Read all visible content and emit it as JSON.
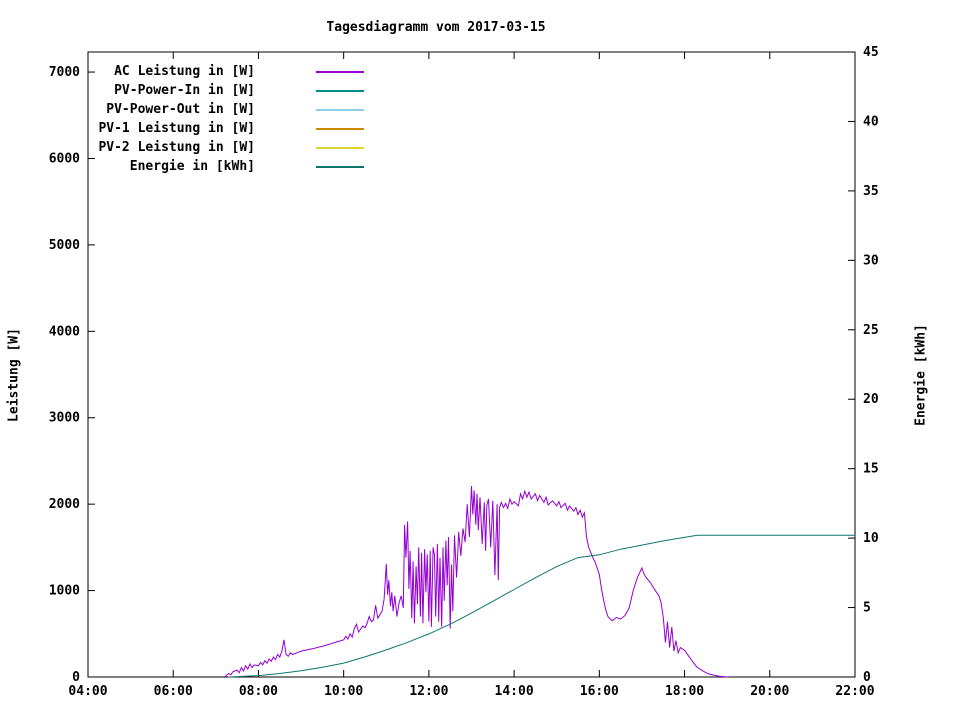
{
  "chart_data": {
    "type": "line",
    "title": "Tagesdiagramm vom 2017-03-15",
    "grid": false,
    "legend_position": "top-left",
    "x_axis": {
      "label": "",
      "min": 4,
      "max": 22,
      "tick_values": [
        4,
        6,
        8,
        10,
        12,
        14,
        16,
        18,
        20,
        22
      ],
      "tick_labels": [
        "04:00",
        "06:00",
        "08:00",
        "10:00",
        "12:00",
        "14:00",
        "16:00",
        "18:00",
        "20:00",
        "22:00"
      ]
    },
    "y_left": {
      "label": "Leistung [W]",
      "min": 0,
      "max": 7232,
      "tick_values": [
        0,
        1000,
        2000,
        3000,
        4000,
        5000,
        6000,
        7000
      ],
      "tick_labels": [
        "0",
        "1000",
        "2000",
        "3000",
        "4000",
        "5000",
        "6000",
        "7000"
      ]
    },
    "y_right": {
      "label": "Energie [kWh]",
      "min": 0,
      "max": 45,
      "tick_values": [
        0,
        5,
        10,
        15,
        20,
        25,
        30,
        35,
        40,
        45
      ],
      "tick_labels": [
        "0",
        "5",
        "10",
        "15",
        "20",
        "25",
        "30",
        "35",
        "40",
        "45"
      ]
    },
    "series": [
      {
        "name": "AC Leistung in [W]",
        "color": "#9400d3",
        "axis": "left",
        "points": [
          [
            7.2,
            0
          ],
          [
            7.25,
            20
          ],
          [
            7.3,
            40
          ],
          [
            7.35,
            25
          ],
          [
            7.4,
            60
          ],
          [
            7.5,
            80
          ],
          [
            7.55,
            50
          ],
          [
            7.6,
            110
          ],
          [
            7.65,
            70
          ],
          [
            7.7,
            130
          ],
          [
            7.75,
            90
          ],
          [
            7.8,
            150
          ],
          [
            7.85,
            110
          ],
          [
            7.9,
            140
          ],
          [
            8.0,
            130
          ],
          [
            8.05,
            170
          ],
          [
            8.1,
            140
          ],
          [
            8.15,
            190
          ],
          [
            8.2,
            160
          ],
          [
            8.25,
            210
          ],
          [
            8.3,
            180
          ],
          [
            8.35,
            230
          ],
          [
            8.4,
            200
          ],
          [
            8.45,
            260
          ],
          [
            8.5,
            230
          ],
          [
            8.55,
            300
          ],
          [
            8.6,
            430
          ],
          [
            8.65,
            260
          ],
          [
            8.7,
            240
          ],
          [
            8.75,
            280
          ],
          [
            8.8,
            260
          ],
          [
            8.9,
            280
          ],
          [
            9.0,
            300
          ],
          [
            9.1,
            310
          ],
          [
            9.2,
            320
          ],
          [
            9.3,
            330
          ],
          [
            9.4,
            345
          ],
          [
            9.5,
            355
          ],
          [
            9.6,
            370
          ],
          [
            9.7,
            385
          ],
          [
            9.8,
            400
          ],
          [
            9.9,
            415
          ],
          [
            10.0,
            430
          ],
          [
            10.05,
            470
          ],
          [
            10.1,
            440
          ],
          [
            10.15,
            500
          ],
          [
            10.2,
            460
          ],
          [
            10.25,
            560
          ],
          [
            10.3,
            610
          ],
          [
            10.35,
            520
          ],
          [
            10.4,
            555
          ],
          [
            10.45,
            590
          ],
          [
            10.5,
            570
          ],
          [
            10.55,
            620
          ],
          [
            10.6,
            700
          ],
          [
            10.65,
            640
          ],
          [
            10.7,
            660
          ],
          [
            10.75,
            830
          ],
          [
            10.8,
            680
          ],
          [
            10.85,
            720
          ],
          [
            10.9,
            760
          ],
          [
            10.95,
            900
          ],
          [
            11.0,
            1310
          ],
          [
            11.03,
            950
          ],
          [
            11.06,
            1120
          ],
          [
            11.1,
            820
          ],
          [
            11.13,
            980
          ],
          [
            11.16,
            760
          ],
          [
            11.2,
            940
          ],
          [
            11.25,
            700
          ],
          [
            11.3,
            860
          ],
          [
            11.35,
            940
          ],
          [
            11.4,
            800
          ],
          [
            11.43,
            1760
          ],
          [
            11.46,
            1380
          ],
          [
            11.5,
            1800
          ],
          [
            11.53,
            1020
          ],
          [
            11.56,
            1460
          ],
          [
            11.6,
            680
          ],
          [
            11.63,
            1340
          ],
          [
            11.66,
            620
          ],
          [
            11.7,
            1280
          ],
          [
            11.73,
            840
          ],
          [
            11.76,
            1500
          ],
          [
            11.8,
            700
          ],
          [
            11.83,
            1440
          ],
          [
            11.86,
            620
          ],
          [
            11.9,
            1480
          ],
          [
            11.93,
            980
          ],
          [
            11.96,
            1420
          ],
          [
            12.0,
            640
          ],
          [
            12.03,
            1460
          ],
          [
            12.06,
            580
          ],
          [
            12.1,
            1500
          ],
          [
            12.13,
            1420
          ],
          [
            12.16,
            700
          ],
          [
            12.2,
            1540
          ],
          [
            12.23,
            640
          ],
          [
            12.26,
            1380
          ],
          [
            12.3,
            580
          ],
          [
            12.33,
            1500
          ],
          [
            12.36,
            880
          ],
          [
            12.4,
            1580
          ],
          [
            12.43,
            1060
          ],
          [
            12.46,
            1620
          ],
          [
            12.5,
            560
          ],
          [
            12.53,
            1300
          ],
          [
            12.56,
            760
          ],
          [
            12.6,
            1640
          ],
          [
            12.65,
            1150
          ],
          [
            12.7,
            1680
          ],
          [
            12.75,
            1400
          ],
          [
            12.8,
            1720
          ],
          [
            12.85,
            1560
          ],
          [
            12.9,
            2000
          ],
          [
            12.95,
            1620
          ],
          [
            13.0,
            2210
          ],
          [
            13.03,
            1880
          ],
          [
            13.06,
            2160
          ],
          [
            13.1,
            1760
          ],
          [
            13.13,
            2120
          ],
          [
            13.16,
            1700
          ],
          [
            13.2,
            2080
          ],
          [
            13.25,
            1540
          ],
          [
            13.3,
            2020
          ],
          [
            13.33,
            1460
          ],
          [
            13.36,
            1980
          ],
          [
            13.4,
            2060
          ],
          [
            13.45,
            1500
          ],
          [
            13.5,
            2040
          ],
          [
            13.55,
            1180
          ],
          [
            13.6,
            2000
          ],
          [
            13.63,
            1120
          ],
          [
            13.66,
            1960
          ],
          [
            13.7,
            2020
          ],
          [
            13.75,
            1960
          ],
          [
            13.8,
            2010
          ],
          [
            13.85,
            1950
          ],
          [
            13.9,
            2060
          ],
          [
            13.95,
            2000
          ],
          [
            14.0,
            2030
          ],
          [
            14.1,
            1980
          ],
          [
            14.15,
            2120
          ],
          [
            14.2,
            2060
          ],
          [
            14.25,
            2150
          ],
          [
            14.3,
            2080
          ],
          [
            14.35,
            2140
          ],
          [
            14.4,
            2060
          ],
          [
            14.5,
            2120
          ],
          [
            14.55,
            2040
          ],
          [
            14.6,
            2100
          ],
          [
            14.7,
            2020
          ],
          [
            14.75,
            2080
          ],
          [
            14.8,
            1990
          ],
          [
            14.9,
            2040
          ],
          [
            15.0,
            1980
          ],
          [
            15.05,
            2030
          ],
          [
            15.1,
            1960
          ],
          [
            15.2,
            2010
          ],
          [
            15.25,
            1930
          ],
          [
            15.3,
            1980
          ],
          [
            15.4,
            1920
          ],
          [
            15.45,
            1960
          ],
          [
            15.5,
            1880
          ],
          [
            15.55,
            1930
          ],
          [
            15.6,
            1850
          ],
          [
            15.65,
            1900
          ],
          [
            15.7,
            1620
          ],
          [
            15.75,
            1500
          ],
          [
            15.8,
            1440
          ],
          [
            15.85,
            1380
          ],
          [
            15.9,
            1330
          ],
          [
            16.0,
            1190
          ],
          [
            16.05,
            1020
          ],
          [
            16.1,
            890
          ],
          [
            16.15,
            780
          ],
          [
            16.2,
            700
          ],
          [
            16.3,
            650
          ],
          [
            16.4,
            690
          ],
          [
            16.5,
            670
          ],
          [
            16.6,
            710
          ],
          [
            16.7,
            800
          ],
          [
            16.8,
            1010
          ],
          [
            16.9,
            1160
          ],
          [
            17.0,
            1260
          ],
          [
            17.05,
            1190
          ],
          [
            17.1,
            1150
          ],
          [
            17.2,
            1090
          ],
          [
            17.3,
            1010
          ],
          [
            17.4,
            940
          ],
          [
            17.45,
            860
          ],
          [
            17.5,
            690
          ],
          [
            17.55,
            400
          ],
          [
            17.6,
            640
          ],
          [
            17.65,
            340
          ],
          [
            17.7,
            580
          ],
          [
            17.75,
            300
          ],
          [
            17.8,
            420
          ],
          [
            17.85,
            280
          ],
          [
            17.9,
            340
          ],
          [
            18.0,
            310
          ],
          [
            18.1,
            240
          ],
          [
            18.2,
            170
          ],
          [
            18.3,
            110
          ],
          [
            18.4,
            80
          ],
          [
            18.5,
            50
          ],
          [
            18.6,
            30
          ],
          [
            18.8,
            10
          ],
          [
            19.0,
            0
          ]
        ]
      },
      {
        "name": "PV-Power-In in [W]",
        "color": "#008b8b",
        "axis": "left",
        "points": []
      },
      {
        "name": "PV-Power-Out in [W]",
        "color": "#8ccfe8",
        "axis": "left",
        "points": []
      },
      {
        "name": "PV-1 Leistung in [W]",
        "color": "#cc8800",
        "axis": "left",
        "points": []
      },
      {
        "name": "PV-2 Leistung in [W]",
        "color": "#e0d530",
        "axis": "left",
        "points": []
      },
      {
        "name": "Energie in [kWh]",
        "color": "#0f766e",
        "axis": "right",
        "points": [
          [
            7.3,
            0
          ],
          [
            8.0,
            0.1
          ],
          [
            8.5,
            0.25
          ],
          [
            9.0,
            0.45
          ],
          [
            9.5,
            0.7
          ],
          [
            10.0,
            1.0
          ],
          [
            10.5,
            1.45
          ],
          [
            11.0,
            1.95
          ],
          [
            11.5,
            2.5
          ],
          [
            12.0,
            3.1
          ],
          [
            12.5,
            3.8
          ],
          [
            13.0,
            4.6
          ],
          [
            13.5,
            5.45
          ],
          [
            14.0,
            6.3
          ],
          [
            14.5,
            7.15
          ],
          [
            15.0,
            7.95
          ],
          [
            15.5,
            8.6
          ],
          [
            16.0,
            8.8
          ],
          [
            16.5,
            9.2
          ],
          [
            17.0,
            9.5
          ],
          [
            17.5,
            9.8
          ],
          [
            18.0,
            10.05
          ],
          [
            18.3,
            10.2
          ],
          [
            22.0,
            10.2
          ]
        ]
      }
    ]
  }
}
